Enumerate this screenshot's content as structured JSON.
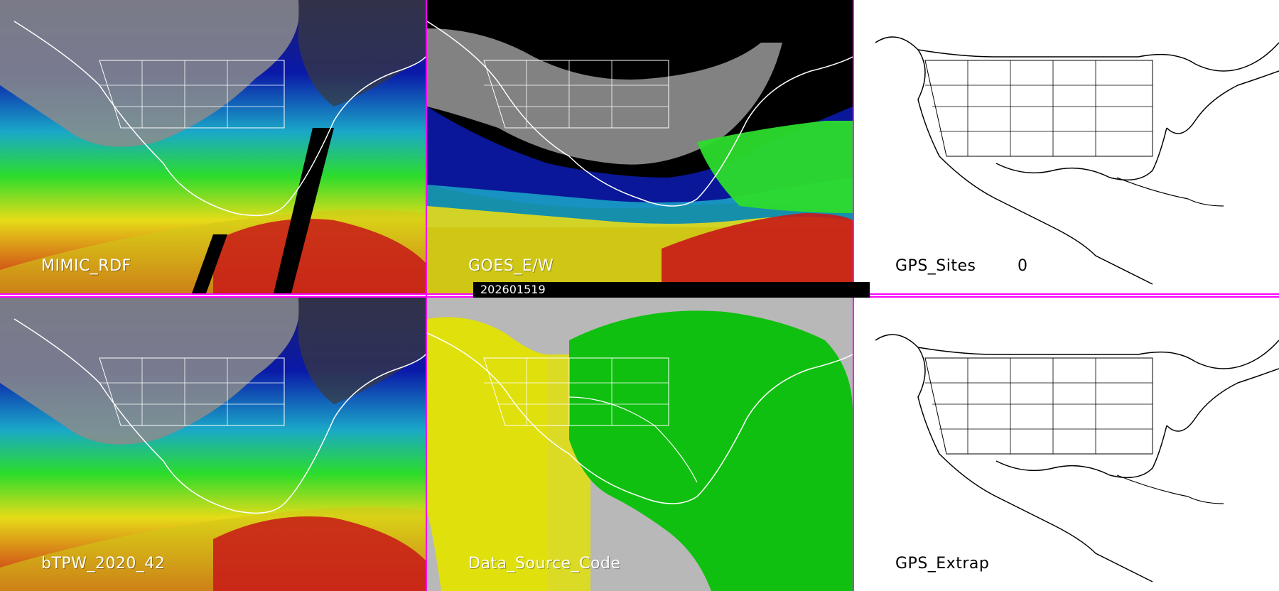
{
  "panels": [
    {
      "id": "mimic-rdf",
      "label": "MIMIC_RDF",
      "type": "tpw"
    },
    {
      "id": "goes-e-w",
      "label": "GOES_E/W",
      "type": "goes"
    },
    {
      "id": "gps-sites",
      "label": "GPS_Sites",
      "count": "0",
      "type": "gps"
    },
    {
      "id": "btpw",
      "label": "bTPW_2020_42",
      "type": "tpw"
    },
    {
      "id": "data-source-code",
      "label": "Data_Source_Code",
      "type": "source"
    },
    {
      "id": "gps-extrap",
      "label": "GPS_Extrap",
      "type": "gps"
    }
  ],
  "timestamp": "202601519",
  "colors": {
    "separator": "#ff00ff",
    "map_outline_light": "#ffffff",
    "map_outline_dark": "#000000",
    "tpw_palette": [
      "#1c1c6e",
      "#0a1aa8",
      "#1aa8c8",
      "#2cdc2c",
      "#e6dc18",
      "#c81818",
      "#c8c8c8"
    ],
    "source_palette": [
      "#b8b8b8",
      "#e0e00c",
      "#10c010"
    ]
  }
}
